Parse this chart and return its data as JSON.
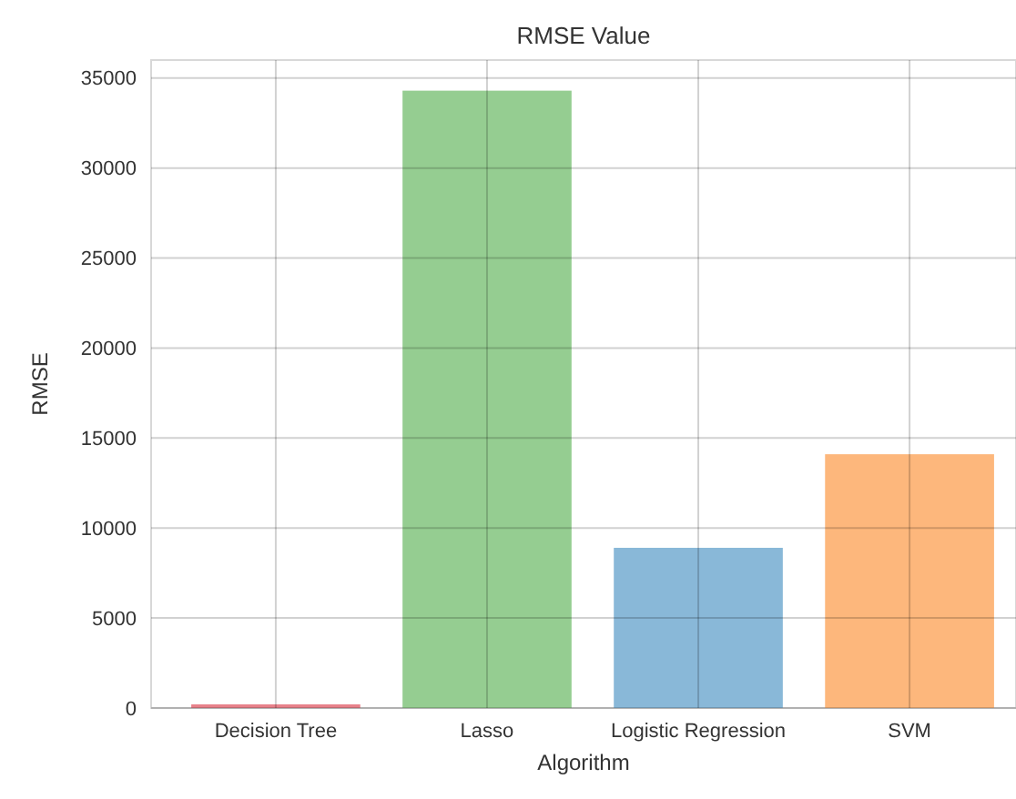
{
  "chart_data": {
    "type": "bar",
    "title": "RMSE Value",
    "xlabel": "Algorithm",
    "ylabel": "RMSE",
    "categories": [
      "Decision Tree",
      "Lasso",
      "Logistic Regression",
      "SVM"
    ],
    "values": [
      200,
      34300,
      8900,
      14100
    ],
    "colors": [
      "#e8818a",
      "#95cd91",
      "#89b8d8",
      "#fdb77c"
    ],
    "ylim": [
      0,
      36000
    ],
    "yticks": [
      0,
      5000,
      10000,
      15000,
      20000,
      25000,
      30000,
      35000
    ],
    "grid": true
  }
}
